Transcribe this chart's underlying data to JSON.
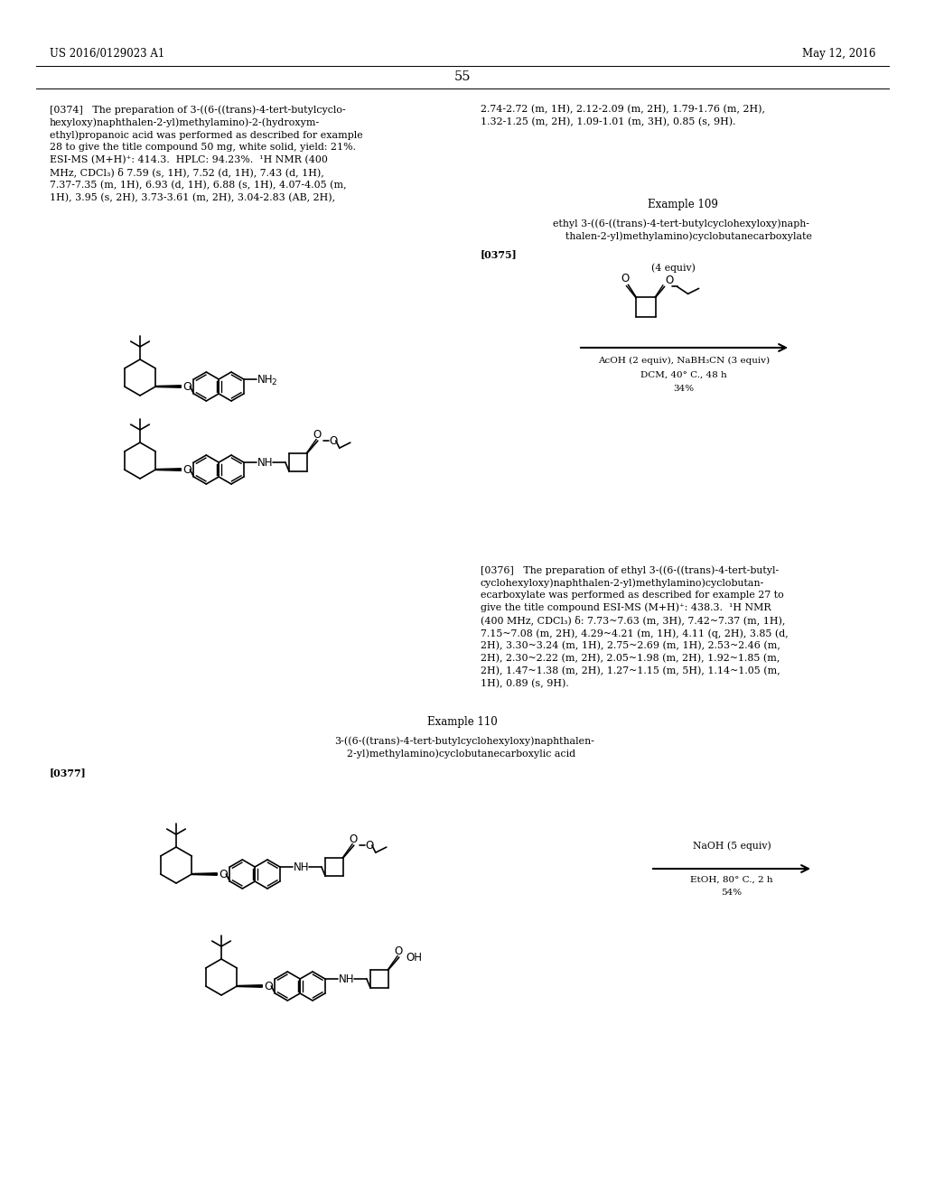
{
  "bg": "#ffffff",
  "header_left": "US 2016/0129023 A1",
  "header_right": "May 12, 2016",
  "page_num": "55",
  "para0374_left": "[0374]   The preparation of 3-((6-((trans)-4-tert-butylcyclo-\nhexyloxy)naphthalen-2-yl)methylamino)-2-(hydroxym-\nethyl)propanoic acid was performed as described for example\n28 to give the title compound 50 mg, white solid, yield: 21%.\nESI-MS (M+H)⁺: 414.3.  HPLC: 94.23%.  ¹H NMR (400\nMHz, CDCl₃) δ 7.59 (s, 1H), 7.52 (d, 1H), 7.43 (d, 1H),\n7.37-7.35 (m, 1H), 6.93 (d, 1H), 6.88 (s, 1H), 4.07-4.05 (m,\n1H), 3.95 (s, 2H), 3.73-3.61 (m, 2H), 3.04-2.83 (AB, 2H),",
  "para0374_right": "2.74-2.72 (m, 1H), 2.12-2.09 (m, 2H), 1.79-1.76 (m, 2H),\n1.32-1.25 (m, 2H), 1.09-1.01 (m, 3H), 0.85 (s, 9H).",
  "ex109_title": "Example 109",
  "ex109_name": "ethyl 3-((6-((trans)-4-tert-butylcyclohexyloxy)naph-\n    thalen-2-yl)methylamino)cyclobutanecarboxylate",
  "para0375": "[0375]",
  "rxn1_above": "(4 equiv)",
  "rxn1_line1": "AcOH (2 equiv), NaBH₃CN (3 equiv)",
  "rxn1_line2": "DCM, 40° C., 48 h",
  "rxn1_line3": "34%",
  "para0376": "[0376]   The preparation of ethyl 3-((6-((trans)-4-tert-butyl-\ncyclohexyloxy)naphthalen-2-yl)methylamino)cyclobutan-\necarboxylate was performed as described for example 27 to\ngive the title compound ESI-MS (M+H)⁺: 438.3.  ¹H NMR\n(400 MHz, CDCl₃) δ: 7.73~7.63 (m, 3H), 7.42~7.37 (m, 1H),\n7.15~7.08 (m, 2H), 4.29~4.21 (m, 1H), 4.11 (q, 2H), 3.85 (d,\n2H), 3.30~3.24 (m, 1H), 2.75~2.69 (m, 1H), 2.53~2.46 (m,\n2H), 2.30~2.22 (m, 2H), 2.05~1.98 (m, 2H), 1.92~1.85 (m,\n2H), 1.47~1.38 (m, 2H), 1.27~1.15 (m, 5H), 1.14~1.05 (m,\n1H), 0.89 (s, 9H).",
  "ex110_title": "Example 110",
  "ex110_name": "3-((6-((trans)-4-tert-butylcyclohexyloxy)naphthalen-\n    2-yl)methylamino)cyclobutanecarboxylic acid",
  "para0377": "[0377]",
  "rxn2_line1": "NaOH (5 equiv)",
  "rxn2_line2": "EtOH, 80° C., 2 h",
  "rxn2_line3": "54%"
}
